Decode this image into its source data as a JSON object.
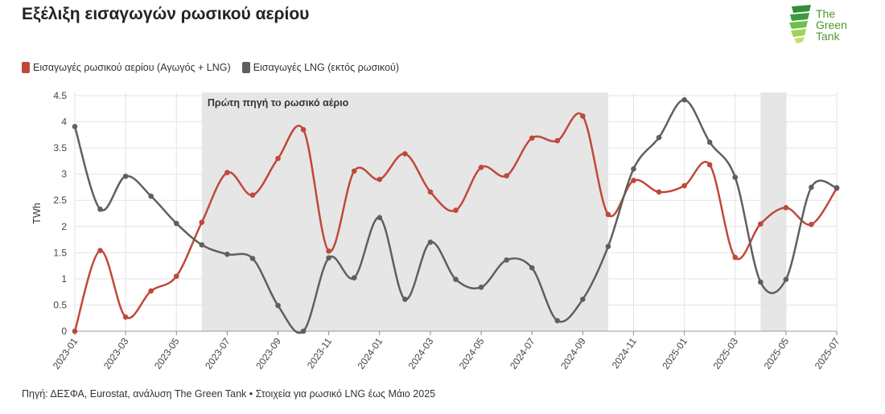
{
  "header": {
    "title": "Εξέλιξη εισαγωγών ρωσικού αερίου"
  },
  "logo": {
    "lines": [
      "The",
      "Green",
      "Tank"
    ],
    "color": "#4a9a2a"
  },
  "footer": {
    "source": "Πηγή: ΔΕΣΦΑ, Eurostat, ανάλυση The Green Tank • Στοιχεία για ρωσικό LNG έως Μάιο 2025"
  },
  "chart_data": {
    "type": "line",
    "title": "Εξέλιξη εισαγωγών ρωσικού αερίου",
    "xlabel": "",
    "ylabel": "TWh",
    "ylim": [
      0,
      4.5
    ],
    "yticks": [
      "0",
      "0.5",
      "1",
      "1.5",
      "2",
      "2.5",
      "3",
      "3.5",
      "4",
      "4.5"
    ],
    "grid": true,
    "legend_position": "top-left",
    "x": [
      "2023-01",
      "2023-02",
      "2023-03",
      "2023-04",
      "2023-05",
      "2023-06",
      "2023-07",
      "2023-08",
      "2023-09",
      "2023-10",
      "2023-11",
      "2023-12",
      "2024-01",
      "2024-02",
      "2024-03",
      "2024-04",
      "2024-05",
      "2024-06",
      "2024-07",
      "2024-08",
      "2024-09",
      "2024-10",
      "2024-11",
      "2024-12",
      "2025-01",
      "2025-02",
      "2025-03",
      "2025-04",
      "2025-05",
      "2025-06",
      "2025-07"
    ],
    "xtick_labels": [
      "2023-01",
      "2023-03",
      "2023-05",
      "2023-07",
      "2023-09",
      "2023-11",
      "2024-01",
      "2024-03",
      "2024-05",
      "2024-07",
      "2024-09",
      "2024-11",
      "2025-01",
      "2025-03",
      "2025-05",
      "2025-07"
    ],
    "series": [
      {
        "name": "Εισαγωγές ρωσικού αερίου (Αγωγός + LNG)",
        "color": "#c0483a",
        "values": [
          0,
          1.54,
          0.27,
          0.77,
          1.05,
          2.08,
          3.03,
          2.6,
          3.3,
          3.85,
          1.53,
          3.06,
          2.9,
          3.39,
          2.66,
          2.31,
          3.13,
          2.97,
          3.69,
          3.64,
          4.11,
          2.23,
          2.88,
          2.66,
          2.78,
          3.18,
          1.41,
          2.05,
          2.36,
          2.04,
          2.73
        ]
      },
      {
        "name": "Εισαγωγές LNG (εκτός ρωσικού)",
        "color": "#5f5f5f",
        "values": [
          3.91,
          2.33,
          2.96,
          2.58,
          2.06,
          1.65,
          1.47,
          1.39,
          0.49,
          0,
          1.4,
          1.02,
          2.17,
          0.61,
          1.7,
          0.99,
          0.84,
          1.36,
          1.21,
          0.2,
          0.61,
          1.62,
          3.1,
          3.7,
          4.42,
          3.61,
          2.94,
          0.94,
          0.99,
          2.75,
          2.74
        ]
      }
    ],
    "shaded_regions": [
      {
        "from": "2023-06",
        "to": "2024-10",
        "label": "Πρώτη πηγή το ρωσικό αέριο"
      },
      {
        "from": "2025-04",
        "to": "2025-05",
        "label": ""
      }
    ]
  }
}
